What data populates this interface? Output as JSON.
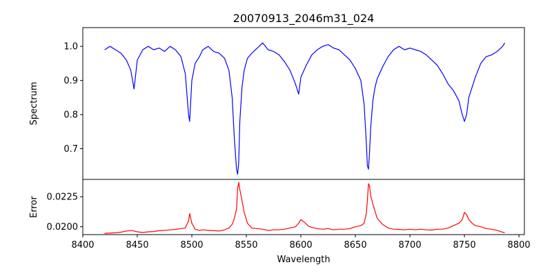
{
  "chart_data": [
    {
      "type": "line",
      "title": "20070913_2046m31_024",
      "xlabel": "",
      "ylabel": "Spectrum",
      "xlim": [
        8400,
        8805
      ],
      "ylim": [
        0.61,
        1.055
      ],
      "x_ticks": [],
      "y_ticks": [
        0.7,
        0.8,
        0.9,
        1.0
      ],
      "y_tick_labels": [
        "0.7",
        "0.8",
        "0.9",
        "1.0"
      ],
      "grid": false,
      "series": [
        {
          "color": "#0000ff",
          "x": [
            8420,
            8425,
            8430,
            8435,
            8440,
            8444,
            8447,
            8450,
            8455,
            8460,
            8465,
            8470,
            8475,
            8480,
            8485,
            8490,
            8494,
            8497,
            8498,
            8500,
            8503,
            8507,
            8510,
            8515,
            8520,
            8525,
            8530,
            8534,
            8537,
            8539,
            8541,
            8542,
            8543,
            8544,
            8546,
            8548,
            8551,
            8555,
            8560,
            8565,
            8570,
            8575,
            8580,
            8585,
            8590,
            8595,
            8598,
            8600,
            8605,
            8610,
            8615,
            8620,
            8625,
            8630,
            8635,
            8640,
            8645,
            8650,
            8655,
            8658,
            8660,
            8661,
            8662,
            8663,
            8664,
            8666,
            8668,
            8670,
            8675,
            8680,
            8685,
            8690,
            8695,
            8700,
            8705,
            8710,
            8715,
            8720,
            8725,
            8730,
            8735,
            8740,
            8745,
            8748,
            8750,
            8752,
            8754,
            8757,
            8760,
            8765,
            8770,
            8775,
            8780,
            8785,
            8787
          ],
          "y": [
            0.99,
            1.0,
            0.99,
            0.98,
            0.96,
            0.93,
            0.875,
            0.96,
            0.99,
            1.0,
            0.99,
            0.995,
            0.985,
            1.0,
            0.99,
            0.97,
            0.92,
            0.8,
            0.78,
            0.9,
            0.95,
            0.97,
            0.99,
            1.0,
            0.985,
            0.98,
            0.965,
            0.93,
            0.85,
            0.73,
            0.64,
            0.625,
            0.66,
            0.78,
            0.88,
            0.93,
            0.965,
            0.98,
            0.995,
            1.01,
            0.99,
            0.985,
            0.975,
            0.955,
            0.93,
            0.89,
            0.86,
            0.91,
            0.945,
            0.975,
            0.99,
            1.0,
            1.005,
            0.995,
            0.99,
            0.975,
            0.96,
            0.935,
            0.9,
            0.83,
            0.72,
            0.65,
            0.64,
            0.69,
            0.76,
            0.84,
            0.88,
            0.905,
            0.94,
            0.97,
            0.99,
            1.0,
            0.99,
            0.995,
            0.99,
            0.985,
            0.975,
            0.96,
            0.945,
            0.92,
            0.89,
            0.87,
            0.84,
            0.8,
            0.78,
            0.8,
            0.85,
            0.88,
            0.91,
            0.95,
            0.97,
            0.975,
            0.985,
            1.0,
            1.01
          ]
        }
      ]
    },
    {
      "type": "line",
      "title": "",
      "xlabel": "Wavelength",
      "ylabel": "Error",
      "xlim": [
        8400,
        8805
      ],
      "ylim": [
        0.01935,
        0.02395
      ],
      "x_ticks": [
        8400,
        8450,
        8500,
        8550,
        8600,
        8650,
        8700,
        8750,
        8800
      ],
      "x_tick_labels": [
        "8400",
        "8450",
        "8500",
        "8550",
        "8600",
        "8650",
        "8700",
        "8750",
        "8800"
      ],
      "y_ticks": [
        0.02,
        0.0225
      ],
      "y_tick_labels": [
        "0.0200",
        "0.0225"
      ],
      "grid": false,
      "series": [
        {
          "color": "#ff0000",
          "x": [
            8420,
            8425,
            8430,
            8435,
            8440,
            8445,
            8450,
            8455,
            8460,
            8465,
            8470,
            8475,
            8480,
            8485,
            8490,
            8494,
            8497,
            8498,
            8500,
            8503,
            8507,
            8510,
            8515,
            8520,
            8525,
            8530,
            8534,
            8537,
            8539,
            8541,
            8542,
            8543,
            8544,
            8546,
            8548,
            8551,
            8555,
            8560,
            8565,
            8570,
            8575,
            8580,
            8585,
            8590,
            8595,
            8598,
            8600,
            8603,
            8607,
            8610,
            8615,
            8620,
            8625,
            8630,
            8635,
            8640,
            8645,
            8650,
            8655,
            8658,
            8660,
            8661,
            8662,
            8663,
            8664,
            8666,
            8668,
            8670,
            8675,
            8680,
            8685,
            8690,
            8695,
            8700,
            8705,
            8710,
            8715,
            8720,
            8725,
            8730,
            8735,
            8740,
            8745,
            8748,
            8750,
            8752,
            8754,
            8757,
            8760,
            8765,
            8770,
            8775,
            8780,
            8785,
            8787
          ],
          "y": [
            0.01945,
            0.01948,
            0.0195,
            0.01955,
            0.01965,
            0.0197,
            0.01958,
            0.01953,
            0.01958,
            0.0196,
            0.01968,
            0.0197,
            0.01975,
            0.01978,
            0.01985,
            0.0199,
            0.0205,
            0.0211,
            0.0203,
            0.0198,
            0.0197,
            0.01975,
            0.0197,
            0.01968,
            0.01965,
            0.01975,
            0.0199,
            0.0202,
            0.0207,
            0.0215,
            0.0232,
            0.0237,
            0.0231,
            0.0222,
            0.0212,
            0.0203,
            0.0199,
            0.01985,
            0.0198,
            0.0197,
            0.01975,
            0.01975,
            0.0198,
            0.0199,
            0.02,
            0.0203,
            0.0206,
            0.0204,
            0.02005,
            0.01995,
            0.01985,
            0.0198,
            0.01985,
            0.01975,
            0.0198,
            0.0198,
            0.01985,
            0.02,
            0.0201,
            0.0203,
            0.0211,
            0.0222,
            0.0236,
            0.0234,
            0.0226,
            0.0219,
            0.0213,
            0.0207,
            0.0202,
            0.0199,
            0.0198,
            0.01978,
            0.01975,
            0.0198,
            0.01975,
            0.0198,
            0.01975,
            0.01973,
            0.0198,
            0.0198,
            0.0199,
            0.0201,
            0.0203,
            0.0206,
            0.0212,
            0.021,
            0.0206,
            0.0203,
            0.0201,
            0.02,
            0.01985,
            0.0198,
            0.0197,
            0.01955,
            0.0195
          ]
        }
      ]
    }
  ]
}
